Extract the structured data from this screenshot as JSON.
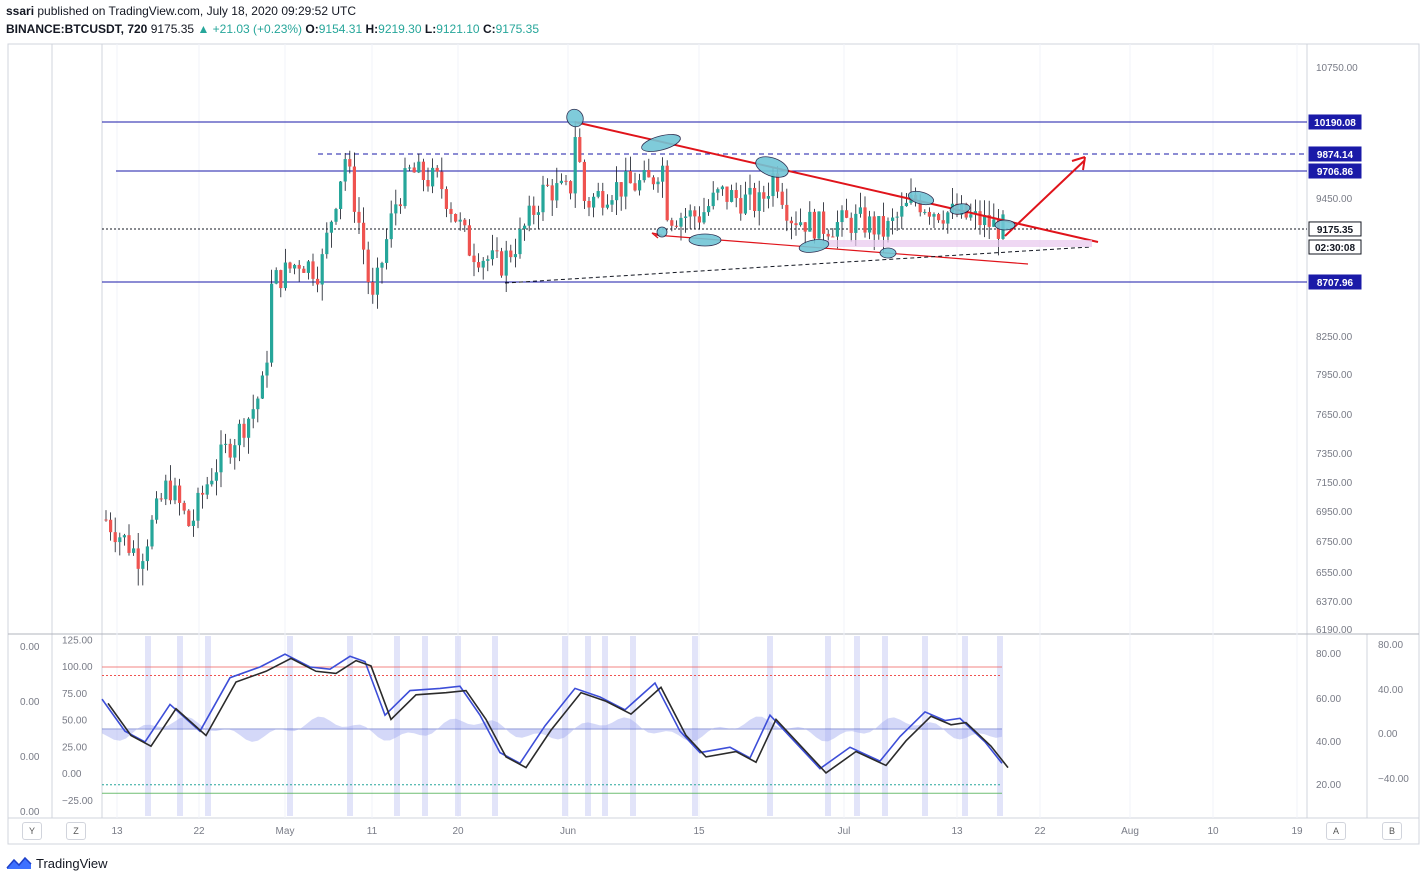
{
  "header": {
    "publisher": "ssari",
    "published_text": "published on TradingView.com, July 18, 2020 09:29:52 UTC",
    "symbol": "BINANCE:BTCUSDT, 720",
    "last": "9175.35",
    "change": "▲ +21.03 (+0.23%)",
    "o_label": "O:",
    "o_value": "9154.31",
    "h_label": "H:",
    "h_value": "9219.30",
    "l_label": "L:",
    "l_value": "9121.10",
    "c_label": "C:",
    "c_value": "9175.35"
  },
  "price_axis": {
    "ticks": [
      "10750.00",
      "9450.00",
      "8250.00",
      "7950.00",
      "7650.00",
      "7350.00",
      "7150.00",
      "6950.00",
      "6750.00",
      "6550.00",
      "6370.00",
      "6190.00"
    ],
    "badges": [
      {
        "text": "10190.08",
        "style": "blue"
      },
      {
        "text": "9874.14",
        "style": "blue"
      },
      {
        "text": "9706.86",
        "style": "blue"
      },
      {
        "text": "9175.35",
        "style": "white"
      },
      {
        "text": "02:30:08",
        "style": "white"
      },
      {
        "text": "8707.96",
        "style": "blue"
      }
    ]
  },
  "time_axis": {
    "labels": [
      "13",
      "22",
      "May",
      "11",
      "20",
      "Jun",
      "15",
      "Jul",
      "13",
      "22",
      "Aug",
      "10",
      "19"
    ]
  },
  "indicator": {
    "left_ticks": [
      "0.00",
      "0.00",
      "0.00",
      "0.00"
    ],
    "inner_ticks": [
      "125.00",
      "100.00",
      "75.00",
      "50.00",
      "25.00",
      "0.00",
      "−25.00"
    ],
    "right_ticks": [
      "80.00",
      "60.00",
      "40.00",
      "20.00"
    ],
    "far_right_ticks": [
      "80.00",
      "40.00",
      "0.00",
      "−40.00"
    ]
  },
  "axis_buttons": {
    "y": "Y",
    "z": "Z",
    "a": "A",
    "b": "B"
  },
  "footer": {
    "brand": "TradingView"
  },
  "colors": {
    "up": "#26a69a",
    "down": "#ef5350",
    "level": "#1a1aa8",
    "trend": "#e0141b",
    "marker": "#72c6d6"
  }
}
